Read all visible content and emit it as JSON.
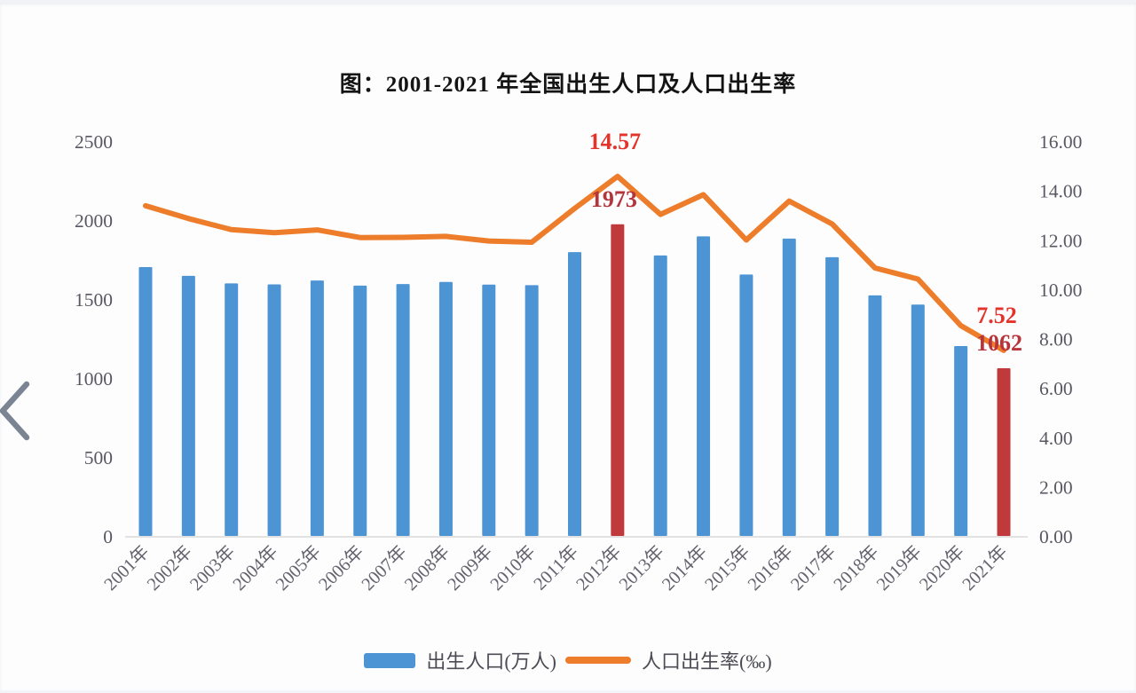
{
  "title": "图：2001-2021 年全国出生人口及人口出生率",
  "back_button": {
    "icon": "chevron-left-icon"
  },
  "legend": {
    "births_label": "出生人口(万人)",
    "rate_label": "人口出生率(‰)"
  },
  "colors": {
    "bar_blue": "#4D94D4",
    "bar_red": "#C0393B",
    "line_orange": "#ED7D2B",
    "axis_text": "#585862",
    "x_label_text": "#63636E",
    "axis_line": "#D9D9D9",
    "legend_text": "#4C4C55",
    "title_text": "#141414",
    "chevron": "#7B8493",
    "annotation_red": "#E2342B",
    "annotation_dark_red": "#B2353C"
  },
  "chart_data": {
    "type": "bar",
    "combo": "bar+line dual axis",
    "title": "图：2001-2021 年全国出生人口及人口出生率",
    "categories": [
      "2001年",
      "2002年",
      "2003年",
      "2004年",
      "2005年",
      "2006年",
      "2007年",
      "2008年",
      "2009年",
      "2010年",
      "2011年",
      "2012年",
      "2013年",
      "2014年",
      "2015年",
      "2016年",
      "2017年",
      "2018年",
      "2019年",
      "2020年",
      "2021年"
    ],
    "series": [
      {
        "name": "出生人口(万人)",
        "type": "bar",
        "axis": "left",
        "unit": "万人",
        "color": "#4D94D4",
        "highlight_color": "#C0393B",
        "highlight_indices": [
          11,
          20
        ],
        "values": [
          1702,
          1647,
          1599,
          1593,
          1617,
          1585,
          1595,
          1608,
          1591,
          1588,
          1797,
          1973,
          1776,
          1897,
          1655,
          1883,
          1765,
          1523,
          1465,
          1202,
          1062
        ]
      },
      {
        "name": "人口出生率(‰)",
        "type": "line",
        "axis": "right",
        "unit": "‰",
        "color": "#ED7D2B",
        "values": [
          13.38,
          12.86,
          12.41,
          12.29,
          12.4,
          12.09,
          12.1,
          12.14,
          11.95,
          11.9,
          13.27,
          14.57,
          13.03,
          13.83,
          11.99,
          13.57,
          12.64,
          10.86,
          10.41,
          8.52,
          7.52
        ]
      }
    ],
    "left_axis": {
      "min": 0,
      "max": 2500,
      "step": 500,
      "decimals": 0,
      "tick_labels": [
        "0",
        "500",
        "1000",
        "1500",
        "2000",
        "2500"
      ]
    },
    "right_axis": {
      "min": 0,
      "max": 16,
      "step": 2,
      "decimals": 2,
      "tick_labels": [
        "0.00",
        "2.00",
        "4.00",
        "6.00",
        "8.00",
        "10.00",
        "12.00",
        "14.00",
        "16.00"
      ]
    },
    "grid": false,
    "legend_position": "bottom",
    "annotations": [
      {
        "text": "14.57",
        "series": "line",
        "index": 11,
        "color": "#E2342B",
        "dx": -3
      },
      {
        "text": "1973",
        "series": "bar",
        "index": 11,
        "color": "#B2353C",
        "dx": -4
      },
      {
        "text": "7.52",
        "series": "line",
        "index": 20,
        "color": "#E2342B",
        "dx": -8
      },
      {
        "text": "1062",
        "series": "bar",
        "index": 20,
        "color": "#B8343A",
        "dx": -5
      }
    ]
  }
}
